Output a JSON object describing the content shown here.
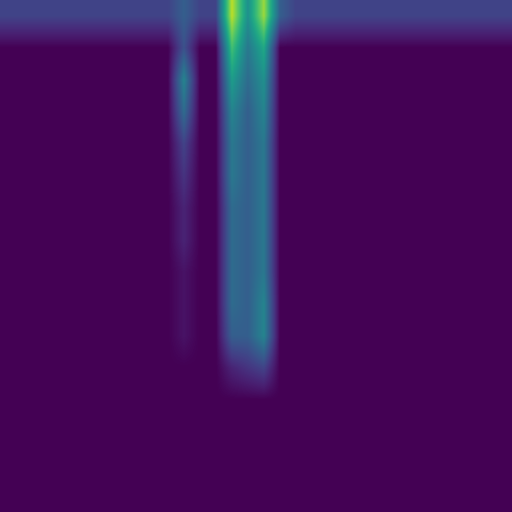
{
  "chart_data": {
    "type": "heatmap",
    "tick_labels": false,
    "value_range": [
      0,
      1
    ],
    "cells": [
      [
        0.2,
        0.2,
        0.2,
        0.2,
        0.2,
        0.2,
        0.2,
        0.2,
        0.2,
        0.2,
        0.2,
        0.3,
        0.2,
        0.2,
        0.9,
        0.5,
        0.85,
        0.3,
        0.2,
        0.2,
        0.2,
        0.2,
        0.2,
        0.2,
        0.2,
        0.2,
        0.2,
        0.2,
        0.2,
        0.2,
        0.2,
        0.2
      ],
      [
        0,
        0,
        0,
        0,
        0,
        0,
        0,
        0,
        0,
        0,
        0,
        0.25,
        0,
        0,
        0.7,
        0.4,
        0.6,
        0,
        0,
        0,
        0,
        0,
        0,
        0,
        0,
        0,
        0,
        0,
        0,
        0,
        0,
        0
      ],
      [
        0,
        0,
        0,
        0,
        0,
        0,
        0,
        0,
        0,
        0,
        0,
        0.45,
        0,
        0,
        0.55,
        0.35,
        0.5,
        0,
        0,
        0,
        0,
        0,
        0,
        0,
        0,
        0,
        0,
        0,
        0,
        0,
        0,
        0
      ],
      [
        0,
        0,
        0,
        0,
        0,
        0,
        0,
        0,
        0,
        0,
        0,
        0.35,
        0,
        0,
        0.45,
        0.3,
        0.45,
        0,
        0,
        0,
        0,
        0,
        0,
        0,
        0,
        0,
        0,
        0,
        0,
        0,
        0,
        0
      ],
      [
        0,
        0,
        0,
        0,
        0,
        0,
        0,
        0,
        0,
        0,
        0,
        0.2,
        0,
        0,
        0.4,
        0.3,
        0.4,
        0,
        0,
        0,
        0,
        0,
        0,
        0,
        0,
        0,
        0,
        0,
        0,
        0,
        0,
        0
      ],
      [
        0,
        0,
        0,
        0,
        0,
        0,
        0,
        0,
        0,
        0,
        0,
        0.15,
        0,
        0,
        0.4,
        0.3,
        0.4,
        0,
        0,
        0,
        0,
        0,
        0,
        0,
        0,
        0,
        0,
        0,
        0,
        0,
        0,
        0
      ],
      [
        0,
        0,
        0,
        0,
        0,
        0,
        0,
        0,
        0,
        0,
        0,
        0.1,
        0,
        0,
        0.35,
        0.3,
        0.4,
        0,
        0,
        0,
        0,
        0,
        0,
        0,
        0,
        0,
        0,
        0,
        0,
        0,
        0,
        0
      ],
      [
        0,
        0,
        0,
        0,
        0,
        0,
        0,
        0,
        0,
        0,
        0,
        0.1,
        0,
        0,
        0.35,
        0.3,
        0.4,
        0,
        0,
        0,
        0,
        0,
        0,
        0,
        0,
        0,
        0,
        0,
        0,
        0,
        0,
        0
      ],
      [
        0,
        0,
        0,
        0,
        0,
        0,
        0,
        0,
        0,
        0,
        0,
        0.05,
        0,
        0,
        0.35,
        0.3,
        0.4,
        0,
        0,
        0,
        0,
        0,
        0,
        0,
        0,
        0,
        0,
        0,
        0,
        0,
        0,
        0
      ],
      [
        0,
        0,
        0,
        0,
        0,
        0,
        0,
        0,
        0,
        0,
        0,
        0.05,
        0,
        0,
        0.35,
        0.3,
        0.45,
        0,
        0,
        0,
        0,
        0,
        0,
        0,
        0,
        0,
        0,
        0,
        0,
        0,
        0,
        0
      ],
      [
        0,
        0,
        0,
        0,
        0,
        0,
        0,
        0,
        0,
        0,
        0,
        0.05,
        0,
        0,
        0.3,
        0.3,
        0.45,
        0,
        0,
        0,
        0,
        0,
        0,
        0,
        0,
        0,
        0,
        0,
        0,
        0,
        0,
        0
      ],
      [
        0,
        0,
        0,
        0,
        0,
        0,
        0,
        0,
        0,
        0,
        0,
        0,
        0,
        0,
        0.1,
        0.15,
        0.2,
        0,
        0,
        0,
        0,
        0,
        0,
        0,
        0,
        0,
        0,
        0,
        0,
        0,
        0,
        0
      ],
      [
        0,
        0,
        0,
        0,
        0,
        0,
        0,
        0,
        0,
        0,
        0,
        0,
        0,
        0,
        0,
        0,
        0,
        0,
        0,
        0,
        0,
        0,
        0,
        0,
        0,
        0,
        0,
        0,
        0,
        0,
        0,
        0
      ],
      [
        0,
        0,
        0,
        0,
        0,
        0,
        0,
        0,
        0,
        0,
        0,
        0,
        0,
        0,
        0,
        0,
        0,
        0,
        0,
        0,
        0,
        0,
        0,
        0,
        0,
        0,
        0,
        0,
        0,
        0,
        0,
        0
      ],
      [
        0,
        0,
        0,
        0,
        0,
        0,
        0,
        0,
        0,
        0,
        0,
        0,
        0,
        0,
        0,
        0,
        0,
        0,
        0,
        0,
        0,
        0,
        0,
        0,
        0,
        0,
        0,
        0,
        0,
        0,
        0,
        0
      ],
      [
        0,
        0,
        0,
        0,
        0,
        0,
        0,
        0,
        0,
        0,
        0,
        0,
        0,
        0,
        0,
        0,
        0,
        0,
        0,
        0,
        0,
        0,
        0,
        0,
        0,
        0,
        0,
        0,
        0,
        0,
        0,
        0
      ]
    ]
  }
}
